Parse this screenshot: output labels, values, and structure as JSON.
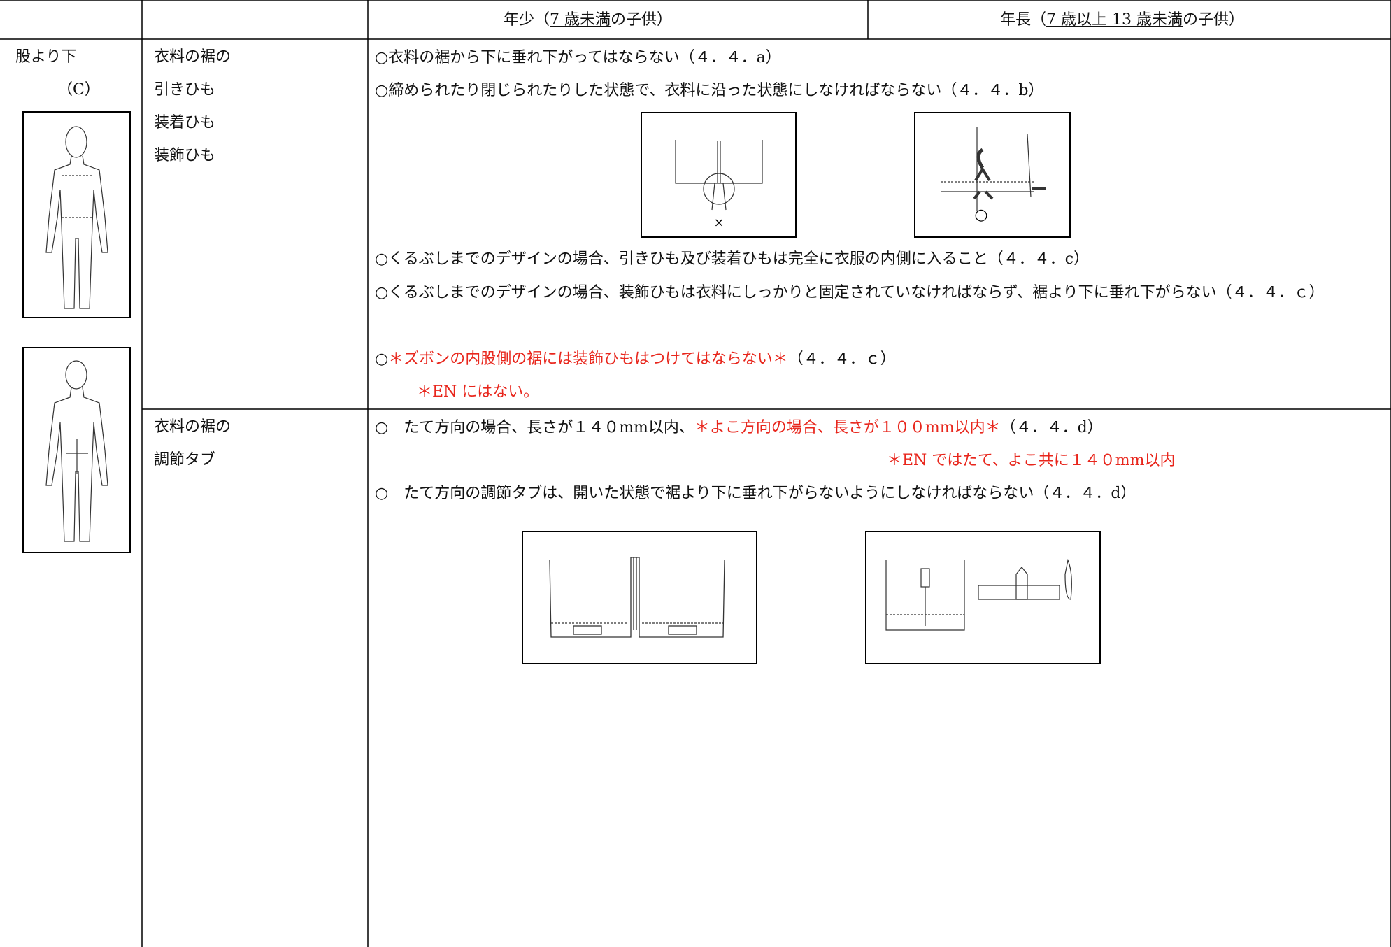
{
  "header": {
    "young": [
      "年少（",
      "7 歳未満",
      "の子供）"
    ],
    "older": [
      "年長（",
      "7 歳以上 13 歳未満",
      "の子供）"
    ]
  },
  "body_part": {
    "name": "股より下",
    "code": "（C）"
  },
  "rows": [
    {
      "item": [
        "衣料の裾の",
        "引きひも",
        "装着ひも",
        "装飾ひも"
      ],
      "lines": [
        [
          "○衣料の裾から下に垂れ下がってはならない（４．４．a）"
        ],
        [
          "○締められたり閉じられたりした状態で、衣料に沿った状態にしなければならない（４．４．b）"
        ],
        [
          "○くるぶしまでのデザインの場合、引きひも及び装着ひもは完全に衣服の内側に入ること（４．４．c）"
        ],
        [
          "○くるぶしまでのデザインの場合、装飾ひもは衣料にしっかりと固定されていなければならず、裾より下に垂れ下がらない（４．４．ｃ）"
        ],
        [
          "○",
          {
            "text": "＊ズボンの内股側の裾には装飾ひもはつけてはならない＊",
            "color": "#e8261c"
          },
          "（４．４．ｃ）"
        ],
        [
          {
            "text": "＊EN にはない。",
            "color": "#e8261c"
          }
        ]
      ],
      "figure_labels": [
        "×",
        "○"
      ]
    },
    {
      "item": [
        "衣料の裾の",
        "調節タブ"
      ],
      "lines": [
        [
          "○　たて方向の場合、長さが１４０mm以内、",
          {
            "text": "＊よこ方向の場合、長さが１００mm以内＊",
            "color": "#e8261c"
          },
          "（４．４．d）"
        ],
        [
          {
            "text": "＊EN ではたて、よこ共に１４０mm以内",
            "color": "#e8261c"
          }
        ],
        [
          "○　たて方向の調節タブは、開いた状態で裾より下に垂れ下がらないようにしなければならない（４．４．d）"
        ]
      ]
    }
  ]
}
